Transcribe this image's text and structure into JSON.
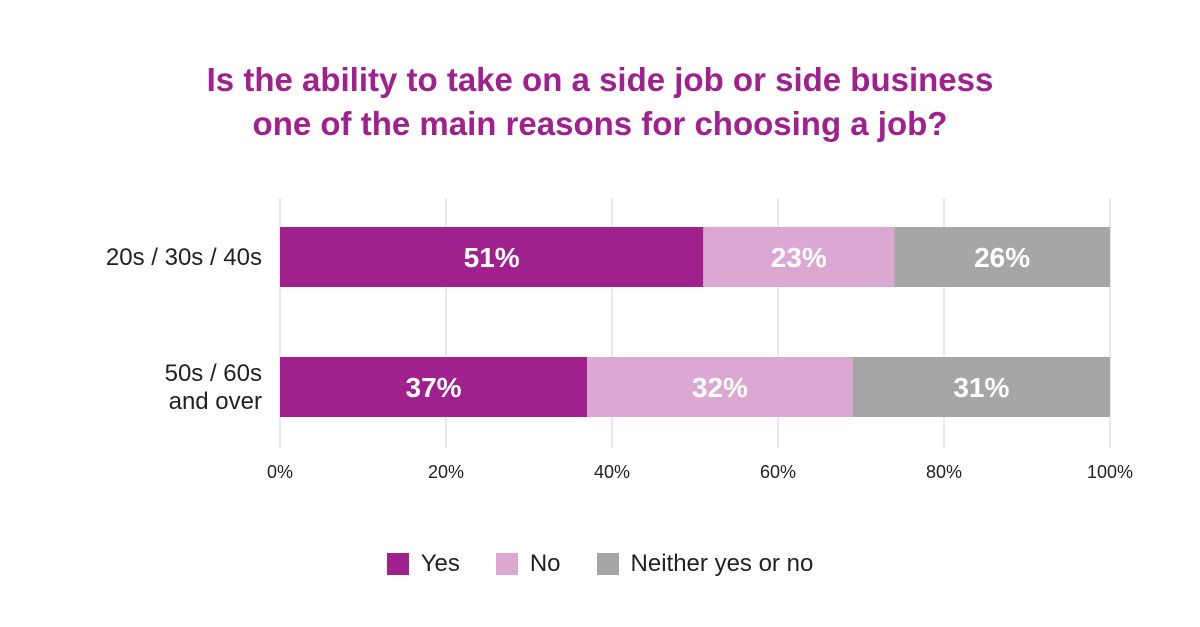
{
  "title_lines": [
    "Is the ability to take on a side job or side business",
    "one of the main reasons for choosing a job?"
  ],
  "colors": {
    "title": "#a0208e",
    "yes": "#a0208e",
    "no": "#dba8d4",
    "neither": "#a6a6a6",
    "grid": "#d9d9d9",
    "bar_label": "#ffffff",
    "axis_text": "#222222"
  },
  "chart_data": {
    "type": "bar",
    "orientation": "horizontal",
    "stacked": true,
    "categories": [
      [
        "20s / 30s / 40s"
      ],
      [
        "50s / 60s",
        "and over"
      ]
    ],
    "series": [
      {
        "name": "Yes",
        "values": [
          51,
          37
        ],
        "labels": [
          "51%",
          "37%"
        ],
        "color_key": "yes"
      },
      {
        "name": "No",
        "values": [
          23,
          32
        ],
        "labels": [
          "23%",
          "32%"
        ],
        "color_key": "no"
      },
      {
        "name": "Neither yes or no",
        "values": [
          26,
          31
        ],
        "labels": [
          "26%",
          "31%"
        ],
        "color_key": "neither"
      }
    ],
    "xlim": [
      0,
      100
    ],
    "xticks": [
      0,
      20,
      40,
      60,
      80,
      100
    ],
    "xtick_labels": [
      "0%",
      "20%",
      "40%",
      "60%",
      "80%",
      "100%"
    ],
    "grid": true,
    "legend_position": "bottom-center"
  },
  "legend": [
    {
      "label": "Yes",
      "color_key": "yes"
    },
    {
      "label": "No",
      "color_key": "no"
    },
    {
      "label": "Neither yes or no",
      "color_key": "neither"
    }
  ]
}
